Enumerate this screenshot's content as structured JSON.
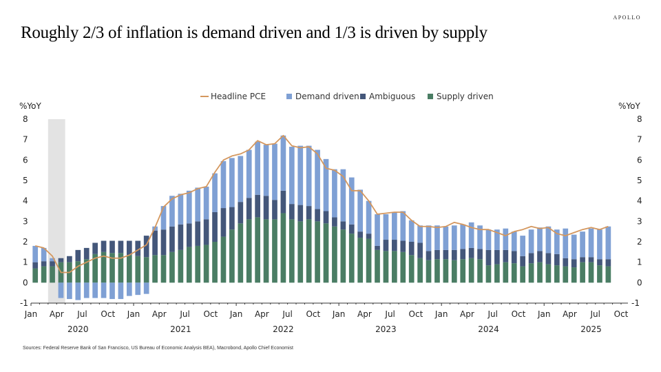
{
  "brand": "APOLLO",
  "title": "Roughly 2/3 of inflation is demand driven and 1/3 is driven by supply",
  "source": "Sources: Federal Reserve Bank of San Francisco, US Bureau of Economic Analysis BEA), Macrobond, Apollo Chief Economist",
  "colors": {
    "headline": "#D4975E",
    "demand": "#7FA0D4",
    "ambiguous": "#44577A",
    "supply": "#4A7D64",
    "recession": "#E3E3E3"
  },
  "chart_data": {
    "type": "bar",
    "stacked": true,
    "title": "Roughly 2/3 of inflation is demand driven and 1/3 is driven by supply",
    "ylabel_left": "%YoY",
    "ylabel_right": "%YoY",
    "ylim": [
      -1,
      8
    ],
    "yticks": [
      -1,
      0,
      1,
      2,
      3,
      4,
      5,
      6,
      7,
      8
    ],
    "x_start": "2020-01",
    "x_end": "2025-10",
    "x_tick_months": [
      "Jan",
      "Apr",
      "Jul",
      "Oct"
    ],
    "x_years": [
      "2020",
      "2021",
      "2022",
      "2023",
      "2024",
      "2025"
    ],
    "recession_shading": [
      "2020-03",
      "2020-04"
    ],
    "legend": [
      "Headline PCE",
      "Demand driven",
      "Ambiguous",
      "Supply driven"
    ],
    "legend_position": "top-center",
    "x": [
      "2020-01",
      "2020-02",
      "2020-03",
      "2020-04",
      "2020-05",
      "2020-06",
      "2020-07",
      "2020-08",
      "2020-09",
      "2020-10",
      "2020-11",
      "2020-12",
      "2021-01",
      "2021-02",
      "2021-03",
      "2021-04",
      "2021-05",
      "2021-06",
      "2021-07",
      "2021-08",
      "2021-09",
      "2021-10",
      "2021-11",
      "2021-12",
      "2022-01",
      "2022-02",
      "2022-03",
      "2022-04",
      "2022-05",
      "2022-06",
      "2022-07",
      "2022-08",
      "2022-09",
      "2022-10",
      "2022-11",
      "2022-12",
      "2023-01",
      "2023-02",
      "2023-03",
      "2023-04",
      "2023-05",
      "2023-06",
      "2023-07",
      "2023-08",
      "2023-09",
      "2023-10",
      "2023-11",
      "2023-12",
      "2024-01",
      "2024-02",
      "2024-03",
      "2024-04",
      "2024-05",
      "2024-06",
      "2024-07",
      "2024-08",
      "2024-09",
      "2024-10",
      "2024-11",
      "2024-12",
      "2025-01",
      "2025-02",
      "2025-03",
      "2025-04",
      "2025-05",
      "2025-06",
      "2025-07",
      "2025-08"
    ],
    "series": [
      {
        "name": "Supply driven",
        "values": [
          0.7,
          0.8,
          0.8,
          1.0,
          1.0,
          1.05,
          1.15,
          1.4,
          1.5,
          1.45,
          1.45,
          1.35,
          1.3,
          1.25,
          1.35,
          1.35,
          1.5,
          1.6,
          1.75,
          1.8,
          1.85,
          2.0,
          2.25,
          2.6,
          2.9,
          3.1,
          3.2,
          3.1,
          3.1,
          3.4,
          3.1,
          3.0,
          3.1,
          3.0,
          2.9,
          2.75,
          2.6,
          2.4,
          2.2,
          2.15,
          1.6,
          1.55,
          1.55,
          1.5,
          1.35,
          1.2,
          1.1,
          1.15,
          1.15,
          1.1,
          1.15,
          1.2,
          1.15,
          0.85,
          0.9,
          1.0,
          0.95,
          0.8,
          0.95,
          1.0,
          0.9,
          0.85,
          0.8,
          0.75,
          1.0,
          1.0,
          0.85,
          0.8
        ]
      },
      {
        "name": "Ambiguous",
        "values": [
          0.3,
          0.25,
          0.25,
          0.2,
          0.3,
          0.55,
          0.55,
          0.55,
          0.55,
          0.6,
          0.6,
          0.7,
          0.75,
          1.05,
          1.2,
          1.25,
          1.25,
          1.25,
          1.15,
          1.2,
          1.25,
          1.45,
          1.4,
          1.1,
          1.05,
          1.05,
          1.1,
          1.15,
          0.95,
          1.1,
          0.75,
          0.8,
          0.65,
          0.6,
          0.6,
          0.45,
          0.4,
          0.45,
          0.3,
          0.25,
          0.2,
          0.55,
          0.55,
          0.55,
          0.65,
          0.75,
          0.45,
          0.45,
          0.45,
          0.5,
          0.5,
          0.5,
          0.5,
          0.75,
          0.7,
          0.6,
          0.6,
          0.5,
          0.5,
          0.55,
          0.55,
          0.55,
          0.4,
          0.4,
          0.25,
          0.25,
          0.3,
          0.35
        ]
      },
      {
        "name": "Demand driven",
        "values": [
          0.8,
          0.65,
          0.15,
          -0.75,
          -0.8,
          -0.85,
          -0.75,
          -0.75,
          -0.75,
          -0.8,
          -0.8,
          -0.65,
          -0.6,
          -0.55,
          0.2,
          1.15,
          1.5,
          1.5,
          1.6,
          1.65,
          1.6,
          1.9,
          2.3,
          2.4,
          2.25,
          2.35,
          2.6,
          2.5,
          2.75,
          2.7,
          2.8,
          2.9,
          2.95,
          2.9,
          2.55,
          2.35,
          2.55,
          2.3,
          2.05,
          1.6,
          1.55,
          1.25,
          1.35,
          1.45,
          1.05,
          0.85,
          1.25,
          1.2,
          1.15,
          1.2,
          1.2,
          1.25,
          1.15,
          1.0,
          1.0,
          1.05,
          0.95,
          1.0,
          1.15,
          1.15,
          1.3,
          1.2,
          1.45,
          1.2,
          1.25,
          1.4,
          1.45,
          1.6
        ]
      },
      {
        "name": "Headline PCE",
        "type": "line",
        "values": [
          1.8,
          1.7,
          1.3,
          0.5,
          0.5,
          0.8,
          1.0,
          1.2,
          1.3,
          1.2,
          1.2,
          1.35,
          1.6,
          1.85,
          2.7,
          3.7,
          4.1,
          4.3,
          4.4,
          4.6,
          4.7,
          5.4,
          6.0,
          6.2,
          6.3,
          6.5,
          6.95,
          6.75,
          6.8,
          7.2,
          6.7,
          6.6,
          6.65,
          6.3,
          5.6,
          5.5,
          5.2,
          4.5,
          4.5,
          4.0,
          3.35,
          3.4,
          3.45,
          3.45,
          3.05,
          2.75,
          2.75,
          2.7,
          2.75,
          2.95,
          2.85,
          2.7,
          2.6,
          2.6,
          2.45,
          2.3,
          2.5,
          2.6,
          2.75,
          2.65,
          2.7,
          2.4,
          2.3,
          2.45,
          2.6,
          2.7,
          2.6,
          2.75
        ]
      }
    ]
  }
}
